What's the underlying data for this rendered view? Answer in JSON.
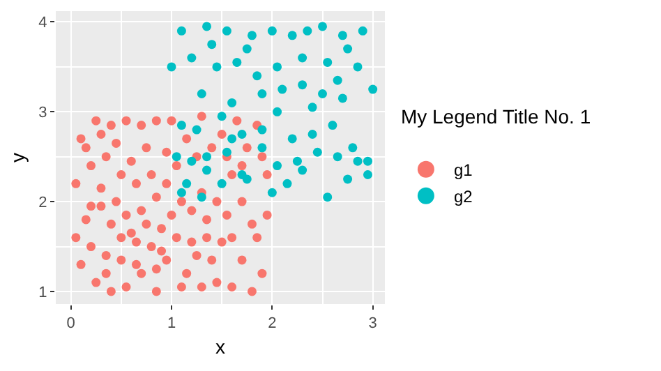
{
  "chart_data": {
    "type": "scatter",
    "xlabel": "x",
    "ylabel": "y",
    "legend_title": "My Legend Title No. 1",
    "xlim": [
      -0.15,
      3.12
    ],
    "ylim": [
      0.86,
      4.12
    ],
    "xticks": [
      0,
      1,
      2,
      3
    ],
    "yticks": [
      1,
      2,
      3,
      4
    ],
    "grid": true,
    "legend": "right",
    "marker": "circle",
    "series": [
      {
        "name": "g1",
        "color": "#f8766d",
        "x": [
          0.1,
          0.25,
          0.4,
          0.55,
          0.7,
          0.85,
          0.2,
          0.35,
          0.5,
          0.6,
          0.75,
          0.05,
          0.15,
          0.3,
          0.45,
          0.55,
          0.7,
          0.85,
          0.95,
          0.05,
          0.2,
          0.35,
          0.5,
          0.65,
          0.8,
          0.9,
          0.1,
          0.25,
          0.4,
          0.55,
          0.7,
          0.85,
          0.95,
          1.05,
          1.15,
          1.25,
          1.3,
          1.45,
          1.6,
          1.8,
          1.9,
          1.35,
          1.5,
          1.7,
          1.85,
          1.95,
          1.1,
          1.2,
          1.3,
          1.45,
          1.6,
          1.75,
          1.85,
          1.05,
          1.15,
          1.3,
          1.4,
          1.5,
          1.65,
          1.9,
          1.0,
          0.6,
          0.4,
          0.3,
          0.8,
          0.9,
          0.75,
          1.1,
          1.2,
          1.4,
          1.55,
          1.7,
          1.8,
          0.15,
          0.45,
          0.65,
          0.95,
          1.25,
          1.55,
          1.7,
          0.35,
          0.5,
          0.65,
          0.2,
          0.85,
          1.0,
          1.6,
          1.35,
          1.95,
          0.3
        ],
        "values": [
          2.7,
          2.9,
          2.85,
          2.9,
          2.85,
          2.9,
          2.4,
          2.5,
          2.3,
          2.45,
          2.6,
          2.2,
          1.8,
          1.95,
          2.0,
          1.85,
          1.9,
          2.05,
          2.2,
          1.6,
          1.5,
          1.4,
          1.6,
          1.3,
          1.5,
          1.7,
          1.3,
          1.1,
          1.0,
          1.05,
          1.2,
          1.0,
          1.35,
          1.6,
          1.2,
          1.4,
          1.05,
          1.1,
          1.05,
          1.0,
          1.2,
          1.8,
          1.55,
          1.35,
          1.6,
          1.85,
          2.0,
          1.9,
          2.1,
          2.0,
          2.3,
          2.6,
          2.85,
          2.4,
          2.7,
          2.95,
          2.6,
          2.75,
          2.9,
          2.5,
          2.9,
          1.65,
          1.75,
          2.15,
          2.3,
          1.45,
          1.75,
          1.05,
          1.55,
          1.35,
          1.85,
          2.0,
          1.75,
          2.6,
          2.65,
          2.2,
          2.55,
          2.5,
          2.5,
          2.4,
          1.2,
          1.35,
          1.55,
          1.95,
          1.25,
          1.85,
          1.6,
          1.6,
          2.3,
          2.75
        ]
      },
      {
        "name": "g2",
        "color": "#00bfc4",
        "x": [
          1.1,
          1.35,
          1.55,
          1.8,
          2.0,
          2.2,
          2.5,
          2.7,
          2.9,
          1.0,
          1.2,
          1.45,
          1.65,
          1.85,
          2.05,
          2.3,
          2.55,
          2.75,
          1.3,
          1.6,
          1.9,
          2.1,
          2.3,
          2.5,
          2.7,
          3.0,
          1.1,
          1.25,
          1.5,
          1.7,
          1.9,
          2.05,
          2.2,
          2.4,
          2.6,
          2.8,
          1.05,
          1.2,
          1.35,
          1.55,
          1.7,
          1.9,
          2.05,
          2.25,
          2.45,
          2.65,
          2.85,
          2.95,
          1.1,
          1.3,
          1.5,
          1.75,
          2.0,
          2.15,
          2.3,
          2.55,
          2.75,
          2.95,
          1.35,
          1.15,
          1.6,
          2.4,
          2.65,
          1.4,
          1.75,
          2.35,
          2.85
        ],
        "values": [
          3.9,
          3.95,
          3.9,
          3.85,
          3.9,
          3.85,
          3.95,
          3.85,
          3.9,
          3.5,
          3.6,
          3.5,
          3.55,
          3.4,
          3.5,
          3.6,
          3.55,
          3.7,
          3.2,
          3.1,
          3.2,
          3.25,
          3.3,
          3.2,
          3.15,
          3.25,
          2.85,
          2.8,
          2.95,
          2.75,
          2.8,
          3.0,
          2.7,
          2.75,
          2.85,
          2.6,
          2.5,
          2.45,
          2.5,
          2.55,
          2.3,
          2.6,
          2.4,
          2.45,
          2.55,
          2.5,
          2.45,
          2.3,
          2.1,
          2.05,
          2.2,
          2.25,
          2.1,
          2.2,
          2.35,
          2.05,
          2.25,
          2.45,
          2.35,
          2.2,
          2.7,
          3.05,
          3.35,
          3.75,
          3.7,
          3.9,
          3.5
        ]
      }
    ]
  }
}
